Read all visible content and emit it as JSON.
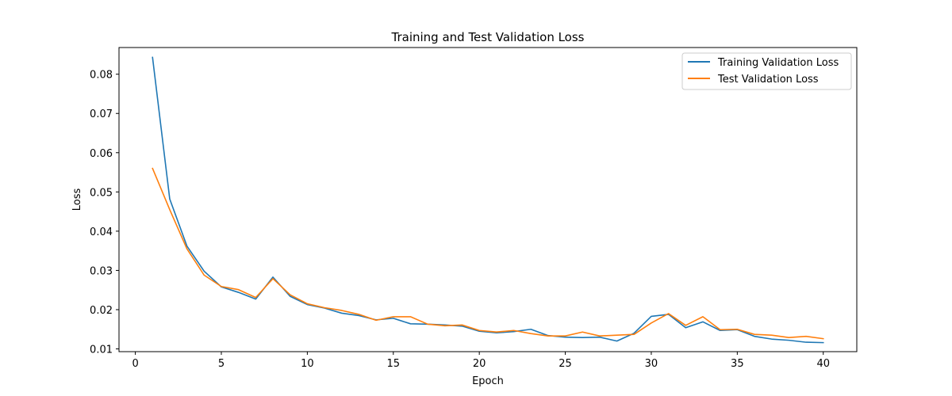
{
  "chart_data": {
    "type": "line",
    "title": "Training and Test Validation Loss",
    "xlabel": "Epoch",
    "ylabel": "Loss",
    "xlim": [
      -0.95,
      41.95
    ],
    "ylim": [
      0.0093,
      0.0868
    ],
    "xticks": [
      0,
      5,
      10,
      15,
      20,
      25,
      30,
      35,
      40
    ],
    "yticks": [
      0.01,
      0.02,
      0.03,
      0.04,
      0.05,
      0.06,
      0.07,
      0.08
    ],
    "ytick_labels": [
      "0.01",
      "0.02",
      "0.03",
      "0.04",
      "0.05",
      "0.06",
      "0.07",
      "0.08"
    ],
    "grid": false,
    "legend_position": "upper right",
    "x": [
      1,
      2,
      3,
      4,
      5,
      6,
      7,
      8,
      9,
      10,
      11,
      12,
      13,
      14,
      15,
      16,
      17,
      18,
      19,
      20,
      21,
      22,
      23,
      24,
      25,
      26,
      27,
      28,
      29,
      30,
      31,
      32,
      33,
      34,
      35,
      36,
      37,
      38,
      39,
      40
    ],
    "series": [
      {
        "name": "Training Validation Loss",
        "color": "#1f77b4",
        "values": [
          0.0843,
          0.0482,
          0.0362,
          0.0298,
          0.0258,
          0.0244,
          0.0227,
          0.0283,
          0.0234,
          0.0213,
          0.0204,
          0.0191,
          0.0185,
          0.0174,
          0.0178,
          0.0164,
          0.0163,
          0.0161,
          0.0158,
          0.0145,
          0.0141,
          0.0144,
          0.015,
          0.0134,
          0.013,
          0.0129,
          0.013,
          0.012,
          0.014,
          0.0183,
          0.0188,
          0.0154,
          0.0169,
          0.0147,
          0.0149,
          0.0132,
          0.0125,
          0.0122,
          0.0117,
          0.0116
        ]
      },
      {
        "name": "Test Validation Loss",
        "color": "#ff7f0e",
        "values": [
          0.056,
          0.0455,
          0.0355,
          0.0288,
          0.0259,
          0.0251,
          0.0231,
          0.0279,
          0.0238,
          0.0215,
          0.0205,
          0.0198,
          0.0188,
          0.0173,
          0.0182,
          0.0182,
          0.0163,
          0.0159,
          0.0161,
          0.0147,
          0.0143,
          0.0147,
          0.0139,
          0.0133,
          0.0133,
          0.0143,
          0.0133,
          0.0135,
          0.0137,
          0.0166,
          0.019,
          0.016,
          0.0182,
          0.0149,
          0.015,
          0.0137,
          0.0135,
          0.0129,
          0.0132,
          0.0126
        ]
      }
    ]
  }
}
